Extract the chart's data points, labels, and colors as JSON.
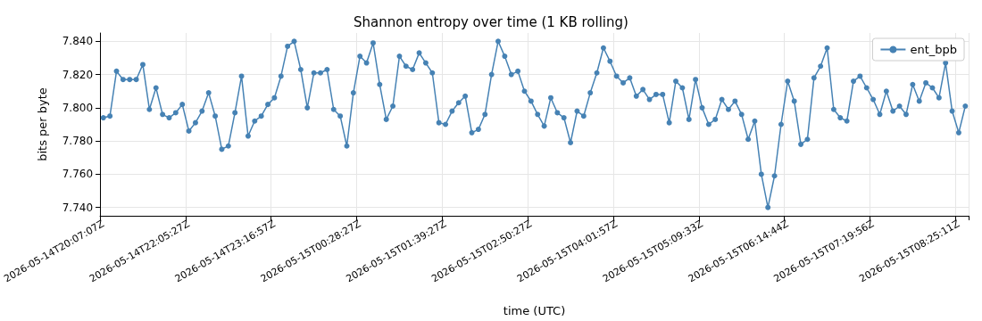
{
  "chart_data": {
    "type": "line",
    "title": "Shannon entropy over time (1 KB rolling)",
    "xlabel": "time (UTC)",
    "ylabel": "bits per byte",
    "categories": [
      "2026-05-14T20:07:07Z",
      null,
      null,
      null,
      null,
      null,
      null,
      null,
      null,
      null,
      null,
      null,
      null,
      "2026-05-14T22:05:27Z",
      null,
      null,
      null,
      null,
      null,
      null,
      null,
      null,
      null,
      null,
      null,
      null,
      "2026-05-14T23:16:57Z",
      null,
      null,
      null,
      null,
      null,
      null,
      null,
      null,
      null,
      null,
      null,
      null,
      "2026-05-15T00:28:27Z",
      null,
      null,
      null,
      null,
      null,
      null,
      null,
      null,
      null,
      null,
      null,
      null,
      "2026-05-15T01:39:27Z",
      null,
      null,
      null,
      null,
      null,
      null,
      null,
      null,
      null,
      null,
      null,
      null,
      "2026-05-15T02:50:27Z",
      null,
      null,
      null,
      null,
      null,
      null,
      null,
      null,
      null,
      null,
      null,
      null,
      "2026-05-15T04:01:57Z",
      null,
      null,
      null,
      null,
      null,
      null,
      null,
      null,
      null,
      null,
      null,
      null,
      "2026-05-15T05:09:33Z",
      null,
      null,
      null,
      null,
      null,
      null,
      null,
      null,
      null,
      null,
      null,
      null,
      "2026-05-15T06:14:44Z",
      null,
      null,
      null,
      null,
      null,
      null,
      null,
      null,
      null,
      null,
      null,
      null,
      "2026-05-15T07:19:56Z",
      null,
      null,
      null,
      null,
      null,
      null,
      null,
      null,
      null,
      null,
      null,
      null,
      "2026-05-15T08:25:11Z",
      null
    ],
    "series": [
      {
        "name": "ent_bpb",
        "color": "#4682b4",
        "values": [
          7.794,
          7.795,
          7.822,
          7.817,
          7.817,
          7.817,
          7.826,
          7.799,
          7.812,
          7.796,
          7.794,
          7.797,
          7.802,
          7.786,
          7.791,
          7.798,
          7.809,
          7.795,
          7.775,
          7.777,
          7.797,
          7.819,
          7.783,
          7.792,
          7.795,
          7.802,
          7.806,
          7.819,
          7.837,
          7.84,
          7.823,
          7.8,
          7.821,
          7.821,
          7.823,
          7.799,
          7.795,
          7.777,
          7.809,
          7.831,
          7.827,
          7.839,
          7.814,
          7.793,
          7.801,
          7.831,
          7.825,
          7.823,
          7.833,
          7.827,
          7.821,
          7.791,
          7.79,
          7.798,
          7.803,
          7.807,
          7.785,
          7.787,
          7.796,
          7.82,
          7.84,
          7.831,
          7.82,
          7.822,
          7.81,
          7.804,
          7.796,
          7.789,
          7.806,
          7.797,
          7.794,
          7.779,
          7.798,
          7.795,
          7.809,
          7.821,
          7.836,
          7.828,
          7.819,
          7.815,
          7.818,
          7.807,
          7.811,
          7.805,
          7.808,
          7.808,
          7.791,
          7.816,
          7.812,
          7.793,
          7.817,
          7.8,
          7.79,
          7.793,
          7.805,
          7.799,
          7.804,
          7.796,
          7.781,
          7.792,
          7.76,
          7.74,
          7.759,
          7.79,
          7.816,
          7.804,
          7.778,
          7.781,
          7.818,
          7.825,
          7.836,
          7.799,
          7.794,
          7.792,
          7.816,
          7.819,
          7.812,
          7.805,
          7.796,
          7.81,
          7.798,
          7.801,
          7.796,
          7.814,
          7.804,
          7.815,
          7.812,
          7.806,
          7.827,
          7.798,
          7.785,
          7.801
        ]
      }
    ],
    "ylim": [
      7.735,
      7.845
    ],
    "yticks": [
      {
        "value": 7.74,
        "label": "7.740"
      },
      {
        "value": 7.76,
        "label": "7.760"
      },
      {
        "value": 7.78,
        "label": "7.780"
      },
      {
        "value": 7.8,
        "label": "7.800"
      },
      {
        "value": 7.82,
        "label": "7.820"
      },
      {
        "value": 7.84,
        "label": "7.840"
      }
    ],
    "grid": true,
    "legend": "top right",
    "marker": "circle",
    "line_style": "solid"
  }
}
